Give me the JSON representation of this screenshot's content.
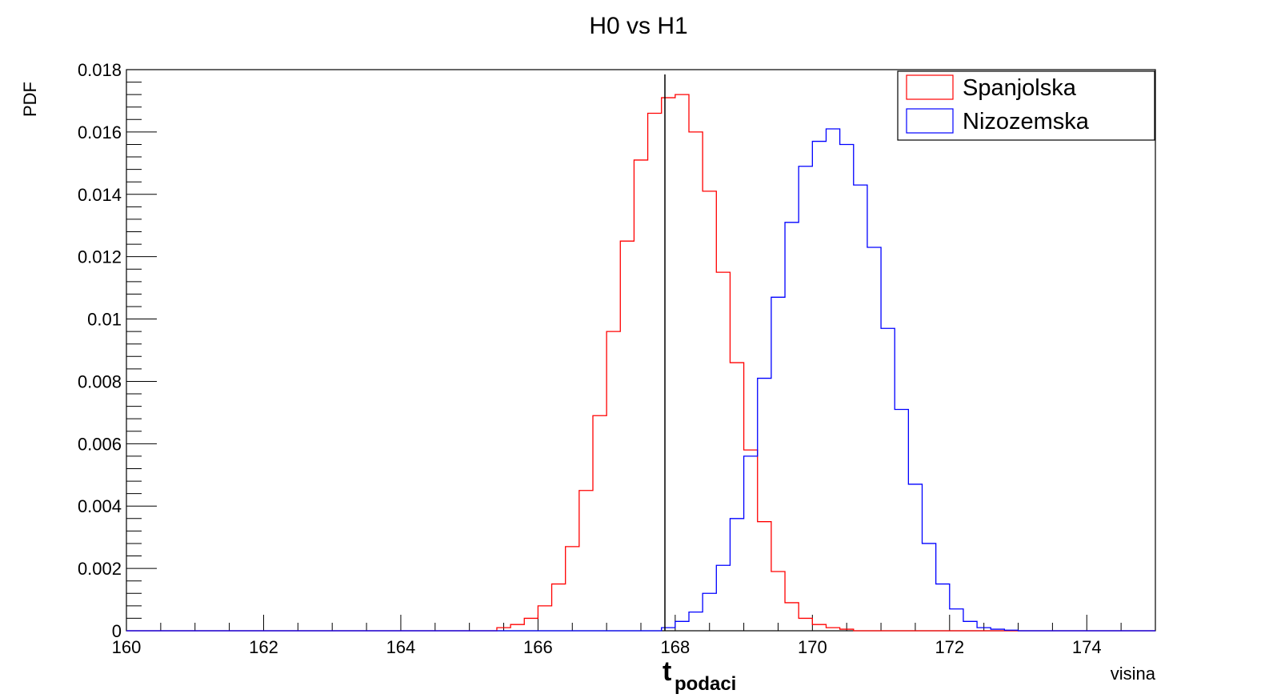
{
  "chart_data": {
    "type": "line",
    "title": "H0 vs H1",
    "xlabel": "visina",
    "ylabel": "PDF",
    "xlim": [
      160,
      175
    ],
    "ylim": [
      0,
      0.018
    ],
    "x_ticks": [
      "160",
      "162",
      "164",
      "166",
      "168",
      "170",
      "172",
      "174"
    ],
    "y_ticks": [
      "0",
      "0.002",
      "0.004",
      "0.006",
      "0.008",
      "0.01",
      "0.012",
      "0.014",
      "0.016",
      "0.018"
    ],
    "grid": false,
    "legend_position": "top-right",
    "series": [
      {
        "name": "Spanjolska",
        "color": "#ff0000",
        "style": "step",
        "x": [
          165.4,
          165.6,
          165.8,
          166.0,
          166.2,
          166.4,
          166.6,
          166.8,
          167.0,
          167.2,
          167.4,
          167.6,
          167.8,
          168.0,
          168.2,
          168.4,
          168.6,
          168.8,
          169.0,
          169.2,
          169.4,
          169.6,
          169.8,
          170.0,
          170.2,
          170.4,
          170.6
        ],
        "values": [
          0.0001,
          0.0002,
          0.0004,
          0.0008,
          0.0015,
          0.0027,
          0.0045,
          0.0069,
          0.0096,
          0.0125,
          0.0151,
          0.0166,
          0.0171,
          0.0172,
          0.016,
          0.0141,
          0.0115,
          0.0086,
          0.0058,
          0.0035,
          0.0019,
          0.0009,
          0.0004,
          0.0002,
          0.0001,
          5e-05,
          0.0
        ]
      },
      {
        "name": "Nizozemska",
        "color": "#0000ff",
        "style": "step",
        "x": [
          167.6,
          167.8,
          168.0,
          168.2,
          168.4,
          168.6,
          168.8,
          169.0,
          169.2,
          169.4,
          169.6,
          169.8,
          170.0,
          170.2,
          170.4,
          170.6,
          170.8,
          171.0,
          171.2,
          171.4,
          171.6,
          171.8,
          172.0,
          172.2,
          172.4,
          172.6,
          172.8,
          173.0
        ],
        "values": [
          0.0,
          0.0001,
          0.0003,
          0.0006,
          0.0012,
          0.0021,
          0.0036,
          0.0056,
          0.0081,
          0.0107,
          0.0131,
          0.0149,
          0.0157,
          0.0161,
          0.0156,
          0.0143,
          0.0123,
          0.0097,
          0.0071,
          0.0047,
          0.0028,
          0.0015,
          0.0007,
          0.0003,
          0.0001,
          5e-05,
          2e-05,
          0.0
        ]
      }
    ],
    "annotations": [
      {
        "type": "vline",
        "x": 167.85,
        "label_main": "t",
        "label_sub": "podaci"
      }
    ]
  }
}
